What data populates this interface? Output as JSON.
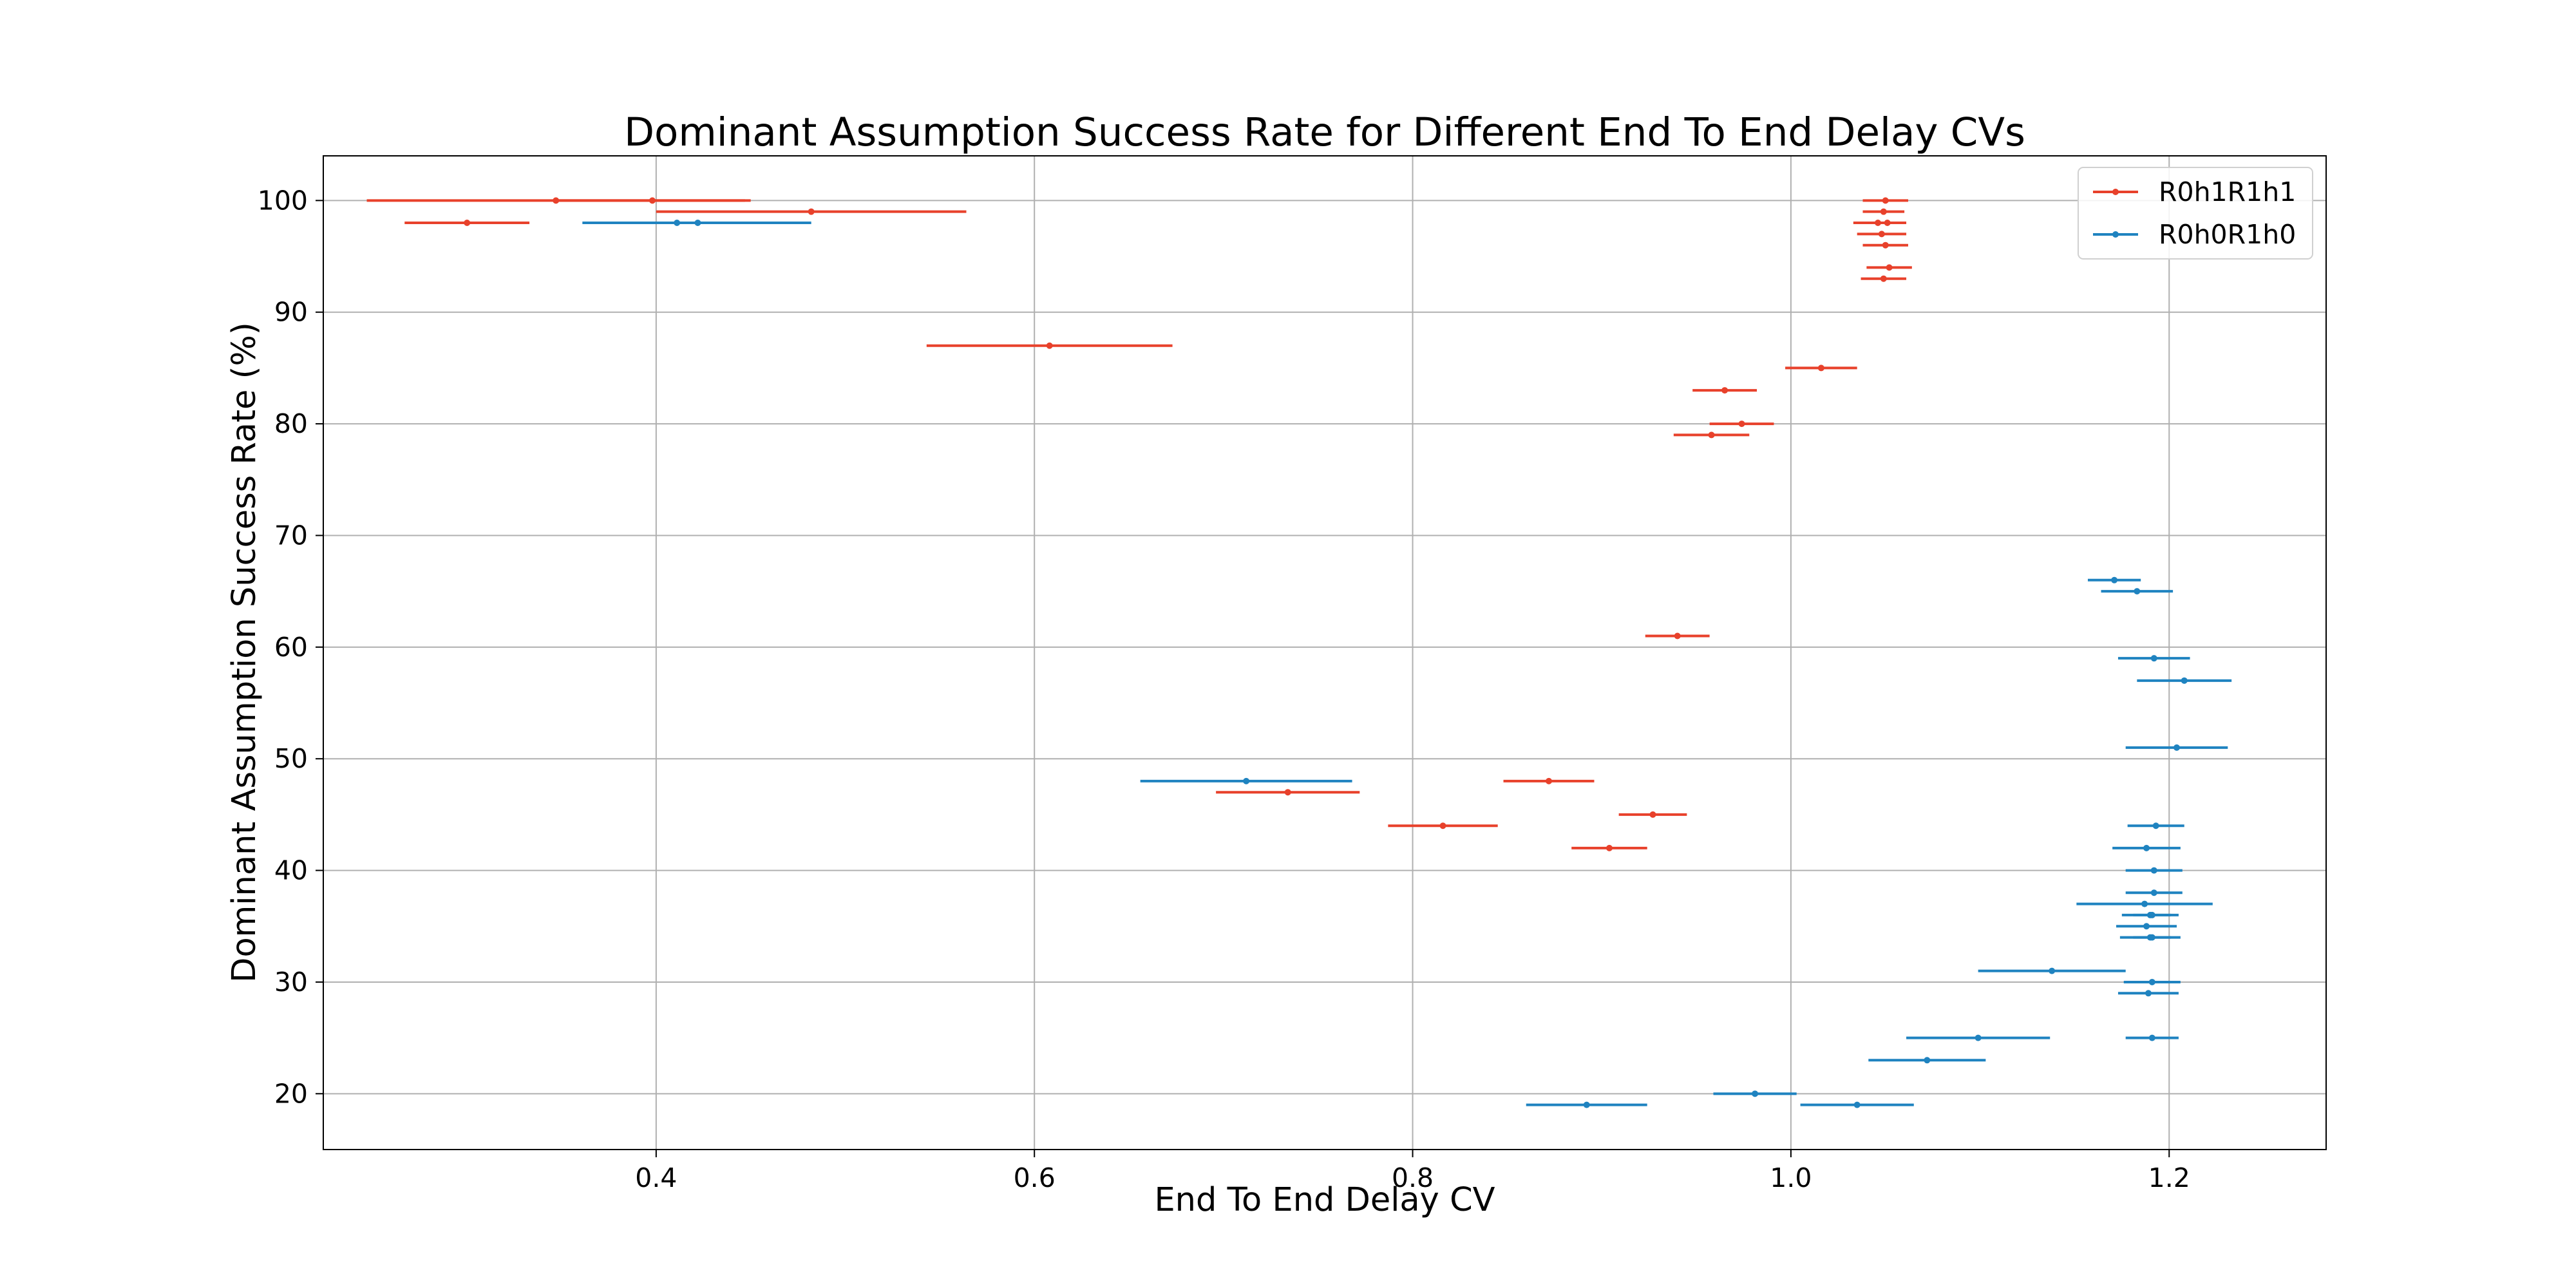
{
  "chart_data": {
    "type": "scatter",
    "title": "Dominant Assumption Success Rate for Different End To End Delay CVs",
    "xlabel": "End To End Delay CV",
    "ylabel": "Dominant Assumption Success Rate (%)",
    "xlim": [
      0.224,
      1.283
    ],
    "ylim": [
      15,
      104
    ],
    "xticks": [
      0.4,
      0.6,
      0.8,
      1.0,
      1.2
    ],
    "xtick_labels": [
      "0.4",
      "0.6",
      "0.8",
      "1.0",
      "1.2"
    ],
    "yticks": [
      20,
      30,
      40,
      50,
      60,
      70,
      80,
      90,
      100
    ],
    "ytick_labels": [
      "20",
      "30",
      "40",
      "50",
      "60",
      "70",
      "80",
      "90",
      "100"
    ],
    "grid": true,
    "legend_position": "top-right",
    "series": [
      {
        "name": "R0h1R1h1",
        "color": "#e8412b",
        "points": [
          {
            "x": 0.347,
            "y": 100,
            "xerr": 0.1
          },
          {
            "x": 0.398,
            "y": 100,
            "xerr": 0.052
          },
          {
            "x": 0.3,
            "y": 98,
            "xerr": 0.033
          },
          {
            "x": 0.482,
            "y": 99,
            "xerr": 0.082
          },
          {
            "x": 0.608,
            "y": 87,
            "xerr": 0.065
          },
          {
            "x": 1.05,
            "y": 100,
            "xerr": 0.012
          },
          {
            "x": 1.049,
            "y": 99,
            "xerr": 0.011
          },
          {
            "x": 1.046,
            "y": 98,
            "xerr": 0.013
          },
          {
            "x": 1.051,
            "y": 98,
            "xerr": 0.01
          },
          {
            "x": 1.048,
            "y": 97,
            "xerr": 0.013
          },
          {
            "x": 1.05,
            "y": 96,
            "xerr": 0.012
          },
          {
            "x": 1.052,
            "y": 94,
            "xerr": 0.012
          },
          {
            "x": 1.049,
            "y": 93,
            "xerr": 0.012
          },
          {
            "x": 1.016,
            "y": 85,
            "xerr": 0.019
          },
          {
            "x": 0.965,
            "y": 83,
            "xerr": 0.017
          },
          {
            "x": 0.974,
            "y": 80,
            "xerr": 0.017
          },
          {
            "x": 0.958,
            "y": 79,
            "xerr": 0.02
          },
          {
            "x": 0.94,
            "y": 61,
            "xerr": 0.017
          },
          {
            "x": 0.872,
            "y": 48,
            "xerr": 0.024
          },
          {
            "x": 0.734,
            "y": 47,
            "xerr": 0.038
          },
          {
            "x": 0.927,
            "y": 45,
            "xerr": 0.018
          },
          {
            "x": 0.816,
            "y": 44,
            "xerr": 0.029
          },
          {
            "x": 0.904,
            "y": 42,
            "xerr": 0.02
          }
        ]
      },
      {
        "name": "R0h0R1h0",
        "color": "#1f83c0",
        "points": [
          {
            "x": 0.411,
            "y": 98,
            "xerr": 0.05
          },
          {
            "x": 0.422,
            "y": 98,
            "xerr": 0.06
          },
          {
            "x": 0.712,
            "y": 48,
            "xerr": 0.056
          },
          {
            "x": 1.171,
            "y": 66,
            "xerr": 0.014
          },
          {
            "x": 1.183,
            "y": 65,
            "xerr": 0.019
          },
          {
            "x": 1.192,
            "y": 59,
            "xerr": 0.019
          },
          {
            "x": 1.208,
            "y": 57,
            "xerr": 0.025
          },
          {
            "x": 1.204,
            "y": 51,
            "xerr": 0.027
          },
          {
            "x": 1.193,
            "y": 44,
            "xerr": 0.015
          },
          {
            "x": 1.188,
            "y": 42,
            "xerr": 0.018
          },
          {
            "x": 1.192,
            "y": 40,
            "xerr": 0.015
          },
          {
            "x": 1.192,
            "y": 38,
            "xerr": 0.015
          },
          {
            "x": 1.187,
            "y": 37,
            "xerr": 0.036
          },
          {
            "x": 1.19,
            "y": 36,
            "xerr": 0.015
          },
          {
            "x": 1.191,
            "y": 36,
            "xerr": 0.01
          },
          {
            "x": 1.188,
            "y": 35,
            "xerr": 0.016
          },
          {
            "x": 1.19,
            "y": 34,
            "xerr": 0.016
          },
          {
            "x": 1.191,
            "y": 34,
            "xerr": 0.01
          },
          {
            "x": 1.138,
            "y": 31,
            "xerr": 0.039
          },
          {
            "x": 1.191,
            "y": 30,
            "xerr": 0.015
          },
          {
            "x": 1.189,
            "y": 29,
            "xerr": 0.016
          },
          {
            "x": 1.099,
            "y": 25,
            "xerr": 0.038
          },
          {
            "x": 1.191,
            "y": 25,
            "xerr": 0.014
          },
          {
            "x": 1.072,
            "y": 23,
            "xerr": 0.031
          },
          {
            "x": 0.981,
            "y": 20,
            "xerr": 0.022
          },
          {
            "x": 0.892,
            "y": 19,
            "xerr": 0.032
          },
          {
            "x": 1.035,
            "y": 19,
            "xerr": 0.03
          }
        ]
      }
    ]
  }
}
